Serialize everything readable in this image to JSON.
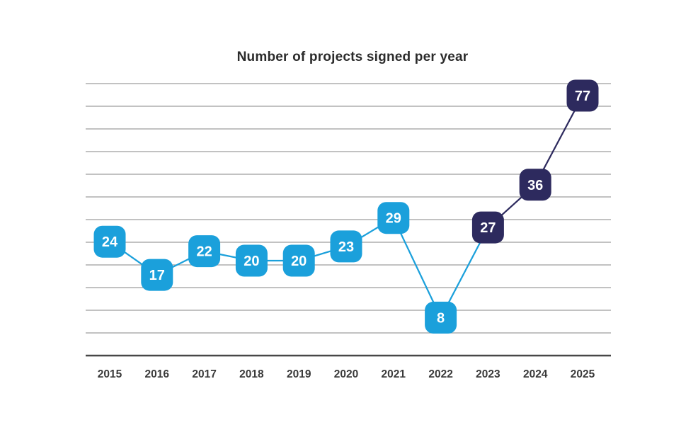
{
  "chart_data": {
    "type": "line",
    "title": "Number of projects signed per year",
    "categories": [
      "2015",
      "2016",
      "2017",
      "2018",
      "2019",
      "2020",
      "2021",
      "2022",
      "2023",
      "2024",
      "2025"
    ],
    "series": [
      {
        "name": "Projects signed",
        "values": [
          24,
          17,
          22,
          20,
          20,
          23,
          29,
          8,
          27,
          36,
          77
        ],
        "point_styles": [
          "blue",
          "blue",
          "blue",
          "blue",
          "blue",
          "blue",
          "blue",
          "blue",
          "navy",
          "navy",
          "navy"
        ]
      }
    ],
    "data_labels": "value shown inside rounded-square marker on each point",
    "marker_shape": "rounded-square",
    "grid": "horizontal",
    "gridline_count": 12,
    "legend": "none",
    "xlabel": "",
    "ylabel": "",
    "ylim": [
      0,
      80
    ],
    "y_axis_labels": "none",
    "colors": {
      "blue": "#1BA0DB",
      "navy": "#2D2A5E",
      "marker_text": "#FFFFFF",
      "gridline": "#9E9E9E",
      "axis_line": "#474747",
      "title_text": "#2B2B2B",
      "tick_text": "#3A3A3A"
    }
  }
}
